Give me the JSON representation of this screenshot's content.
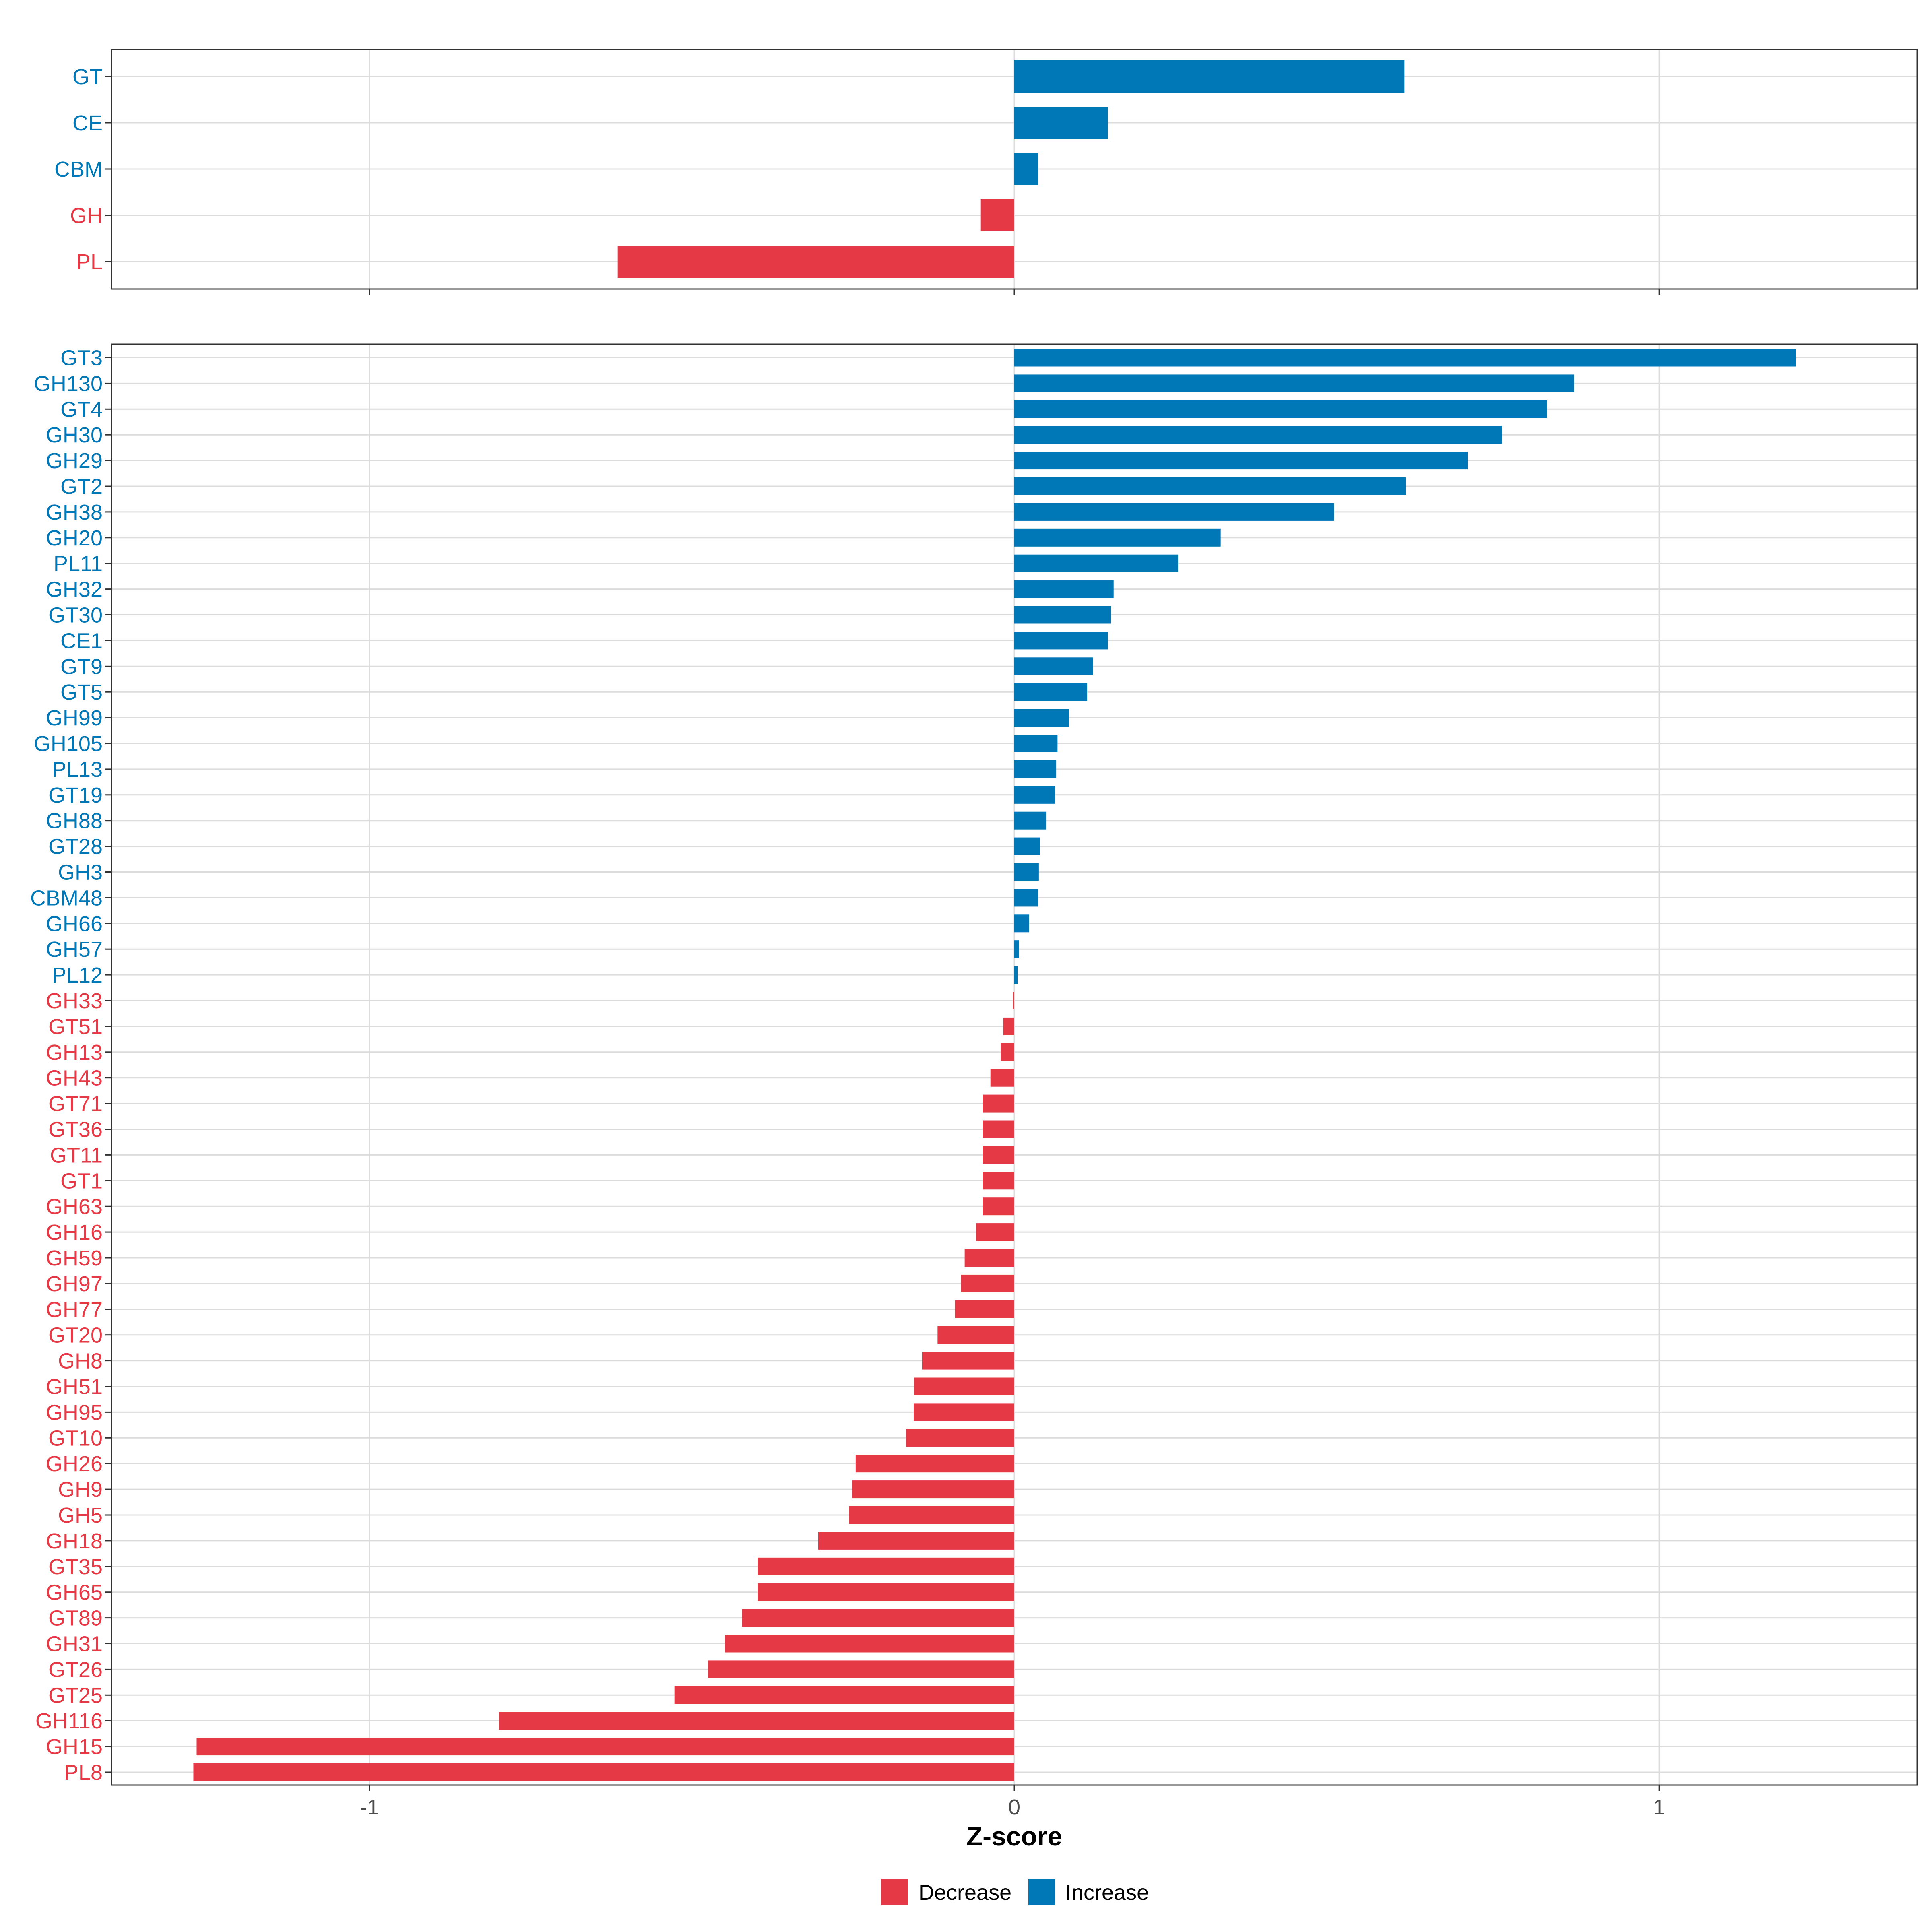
{
  "chart_data": {
    "type": "bar",
    "orientation": "horizontal",
    "xlabel": "Z-score",
    "xlim": [
      -1.4,
      1.4
    ],
    "xticks": [
      {
        "value": -1,
        "label": "-1"
      },
      {
        "value": 0,
        "label": "0"
      },
      {
        "value": 1,
        "label": "1"
      }
    ],
    "colors": {
      "Decrease": "#e63946",
      "Increase": "#0077b6"
    },
    "legend": {
      "position": "bottom",
      "items": [
        {
          "label": "Decrease",
          "color": "#e63946"
        },
        {
          "label": "Increase",
          "color": "#0077b6"
        }
      ]
    },
    "panels": [
      {
        "name": "class",
        "categories": [
          "GT",
          "CE",
          "CBM",
          "GH",
          "PL"
        ],
        "values": [
          0.605,
          0.145,
          0.037,
          -0.052,
          -0.615
        ]
      },
      {
        "name": "family",
        "categories": [
          "GT3",
          "GH130",
          "GT4",
          "GH30",
          "GH29",
          "GT2",
          "GH38",
          "GH20",
          "PL11",
          "GH32",
          "GT30",
          "CE1",
          "GT9",
          "GT5",
          "GH99",
          "GH105",
          "PL13",
          "GT19",
          "GH88",
          "GT28",
          "GH3",
          "CBM48",
          "GH66",
          "GH57",
          "PL12",
          "GH33",
          "GT51",
          "GH13",
          "GH43",
          "GT71",
          "GT36",
          "GT11",
          "GT1",
          "GH63",
          "GH16",
          "GH59",
          "GH97",
          "GH77",
          "GT20",
          "GH8",
          "GH51",
          "GH95",
          "GT10",
          "GH26",
          "GH9",
          "GH5",
          "GH18",
          "GT35",
          "GH65",
          "GT89",
          "GH31",
          "GT26",
          "GT25",
          "GH116",
          "GH15",
          "PL8"
        ],
        "values": [
          1.212,
          0.868,
          0.826,
          0.756,
          0.703,
          0.607,
          0.496,
          0.32,
          0.254,
          0.154,
          0.15,
          0.145,
          0.122,
          0.113,
          0.085,
          0.067,
          0.065,
          0.063,
          0.05,
          0.04,
          0.038,
          0.037,
          0.023,
          0.007,
          0.005,
          -0.002,
          -0.017,
          -0.021,
          -0.037,
          -0.049,
          -0.049,
          -0.049,
          -0.049,
          -0.049,
          -0.059,
          -0.077,
          -0.083,
          -0.092,
          -0.119,
          -0.143,
          -0.155,
          -0.156,
          -0.168,
          -0.246,
          -0.251,
          -0.256,
          -0.304,
          -0.398,
          -0.398,
          -0.422,
          -0.449,
          -0.475,
          -0.527,
          -0.799,
          -1.268,
          -1.273
        ]
      }
    ]
  }
}
